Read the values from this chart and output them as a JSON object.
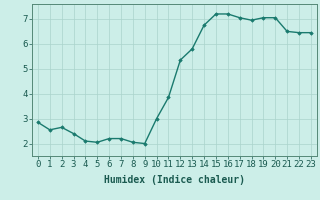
{
  "x": [
    0,
    1,
    2,
    3,
    4,
    5,
    6,
    7,
    8,
    9,
    10,
    11,
    12,
    13,
    14,
    15,
    16,
    17,
    18,
    19,
    20,
    21,
    22,
    23
  ],
  "y": [
    2.85,
    2.55,
    2.65,
    2.4,
    2.1,
    2.05,
    2.2,
    2.2,
    2.05,
    2.0,
    3.0,
    3.85,
    5.35,
    5.8,
    6.75,
    7.2,
    7.2,
    7.05,
    6.95,
    7.05,
    7.05,
    6.5,
    6.45,
    6.45
  ],
  "line_color": "#1a7a6e",
  "marker": "D",
  "marker_size": 1.8,
  "line_width": 1.0,
  "xlabel": "Humidex (Indice chaleur)",
  "xlabel_fontsize": 7,
  "tick_fontsize": 6.5,
  "xlim": [
    -0.5,
    23.5
  ],
  "ylim": [
    1.5,
    7.6
  ],
  "yticks": [
    2,
    3,
    4,
    5,
    6,
    7
  ],
  "xticks": [
    0,
    1,
    2,
    3,
    4,
    5,
    6,
    7,
    8,
    9,
    10,
    11,
    12,
    13,
    14,
    15,
    16,
    17,
    18,
    19,
    20,
    21,
    22,
    23
  ],
  "xtick_labels": [
    "0",
    "1",
    "2",
    "3",
    "4",
    "5",
    "6",
    "7",
    "8",
    "9",
    "10",
    "11",
    "12",
    "13",
    "14",
    "15",
    "16",
    "17",
    "18",
    "19",
    "20",
    "21",
    "22",
    "23"
  ],
  "background_color": "#cceee8",
  "grid_color": "#aad4cc",
  "grid_linewidth": 0.5,
  "spine_color": "#558877"
}
